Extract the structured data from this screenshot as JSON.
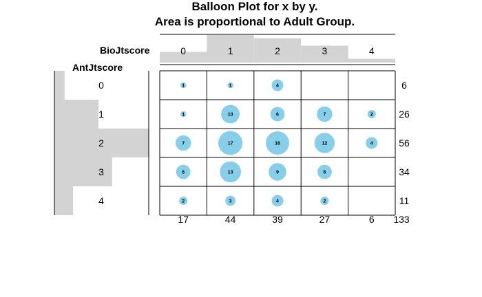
{
  "chart_data": {
    "type": "balloon",
    "title_line1": "Balloon Plot for x by y.",
    "title_line2": "Area is proportional to Adult Group.",
    "col_var": "BioJtscore",
    "row_var": "AntJtscore",
    "col_levels": [
      "0",
      "1",
      "2",
      "3",
      "4"
    ],
    "row_levels": [
      "0",
      "1",
      "2",
      "3",
      "4"
    ],
    "values": [
      [
        1,
        1,
        4,
        null,
        null
      ],
      [
        1,
        10,
        6,
        7,
        2
      ],
      [
        7,
        17,
        16,
        12,
        4
      ],
      [
        6,
        13,
        9,
        6,
        null
      ],
      [
        2,
        3,
        4,
        2,
        null
      ]
    ],
    "row_totals": [
      "6",
      "26",
      "56",
      "34",
      "11"
    ],
    "col_totals": [
      "17",
      "44",
      "39",
      "27",
      "6"
    ],
    "grand_total": "133",
    "balloon_color": "#87ceeb",
    "marginal_bar_color": "#d3d3d3"
  }
}
